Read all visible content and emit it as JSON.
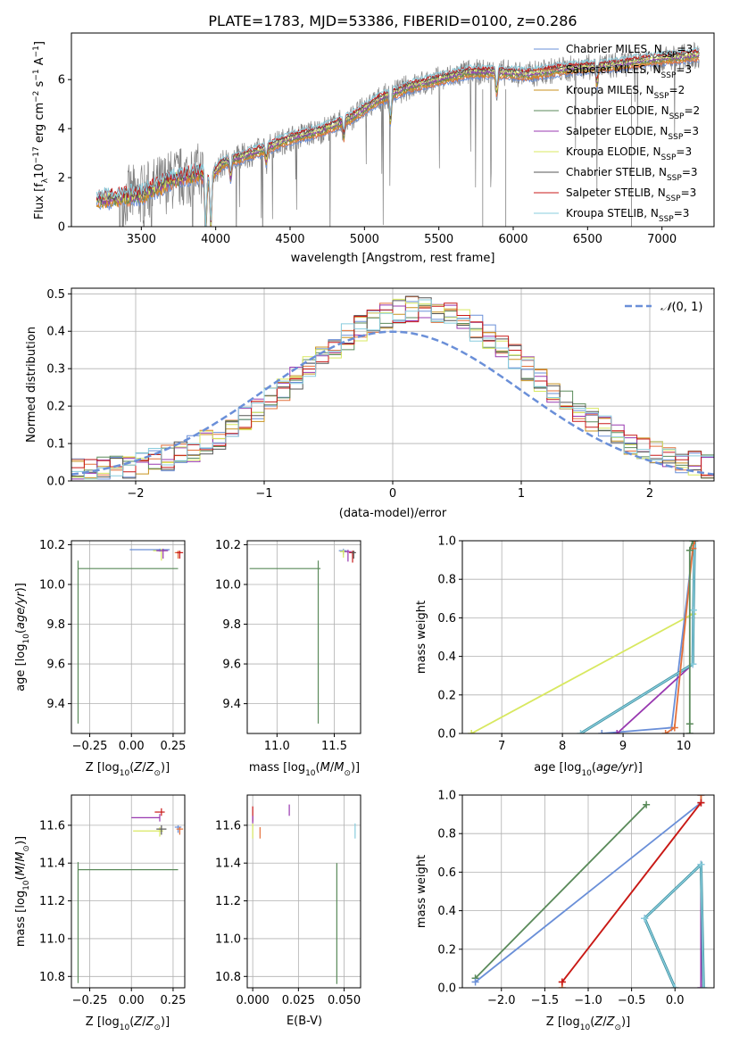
{
  "figure_title": "PLATE=1783, MJD=53386, FIBERID=0100, z=0.286",
  "series": [
    {
      "name": "Chabrier MILES, N_SSP=3",
      "base": "Chabrier MILES, N",
      "sub": "SSP",
      "suffix": "=3",
      "color": "#6a8fd8"
    },
    {
      "name": "Salpeter MILES, N_SSP=3",
      "base": "Salpeter MILES, N",
      "sub": "SSP",
      "suffix": "=3",
      "color": "#e4703a"
    },
    {
      "name": "Kroupa MILES, N_SSP=2",
      "base": "Kroupa MILES, N",
      "sub": "SSP",
      "suffix": "=2",
      "color": "#c8921e"
    },
    {
      "name": "Chabrier ELODIE, N_SSP=2",
      "base": "Chabrier ELODIE, N",
      "sub": "SSP",
      "suffix": "=2",
      "color": "#5a8a5a"
    },
    {
      "name": "Salpeter ELODIE, N_SSP=3",
      "base": "Salpeter ELODIE, N",
      "sub": "SSP",
      "suffix": "=3",
      "color": "#9838b0"
    },
    {
      "name": "Kroupa ELODIE, N_SSP=3",
      "base": "Kroupa ELODIE, N",
      "sub": "SSP",
      "suffix": "=3",
      "color": "#d8e860"
    },
    {
      "name": "Chabrier STELIB, N_SSP=3",
      "base": "Chabrier STELIB, N",
      "sub": "SSP",
      "suffix": "=3",
      "color": "#555555"
    },
    {
      "name": "Salpeter STELIB, N_SSP=3",
      "base": "Salpeter STELIB, N",
      "sub": "SSP",
      "suffix": "=3",
      "color": "#c81818"
    },
    {
      "name": "Kroupa STELIB, N_SSP=3",
      "base": "Kroupa STELIB, N",
      "sub": "SSP",
      "suffix": "=3",
      "color": "#88ccdd"
    }
  ],
  "chart_data": [
    {
      "id": "spectrum",
      "type": "line",
      "xlabel": "wavelength [Angstrom, rest frame]",
      "ylabel": "Flux [f_λ 10^-17 erg cm^-2 s^-1 A^-1]",
      "xlim": [
        3030,
        7350
      ],
      "ylim": [
        0,
        7.9
      ],
      "xticks": [
        3500,
        4000,
        4500,
        5000,
        5500,
        6000,
        6500,
        7000
      ],
      "yticks": [
        0,
        2,
        4,
        6
      ],
      "grid": false,
      "legend": "upper-right",
      "data_color": "#808080",
      "continuum": {
        "x": [
          3200,
          3500,
          3700,
          3900,
          3950,
          4050,
          4300,
          4500,
          4700,
          4900,
          5100,
          5300,
          5500,
          5700,
          5900,
          6100,
          6300,
          6500,
          6700,
          6900,
          7100,
          7250
        ],
        "y": [
          1.1,
          1.3,
          1.9,
          2.2,
          1.9,
          2.6,
          3.1,
          3.6,
          3.9,
          4.4,
          5.2,
          5.7,
          6.0,
          6.3,
          6.3,
          6.2,
          6.4,
          6.5,
          6.6,
          6.8,
          6.9,
          7.0
        ]
      },
      "absorption": [
        [
          3933,
          2.5
        ],
        [
          3968,
          2.2
        ],
        [
          4101,
          0.8
        ],
        [
          4340,
          0.6
        ],
        [
          4861,
          0.7
        ],
        [
          5175,
          1.2
        ],
        [
          5890,
          0.9
        ],
        [
          6563,
          0.8
        ]
      ]
    },
    {
      "id": "residuals",
      "type": "step",
      "xlabel": "(data-model)/error",
      "ylabel": "Normed distribution",
      "xlim": [
        -2.5,
        2.5
      ],
      "ylim": [
        0,
        0.515
      ],
      "xticks": [
        -2,
        -1,
        0,
        1,
        2
      ],
      "yticks": [
        0.0,
        0.1,
        0.2,
        0.3,
        0.4,
        0.5
      ],
      "grid": true,
      "legend": "upper-right",
      "gaussian_label": "N(0,1)",
      "gaussian_color": "#6a8fd8",
      "bin_width": 0.1,
      "envelope": {
        "mu": 0.2,
        "sigma": 0.9,
        "amp": 0.44
      }
    },
    {
      "id": "age-vs-Z",
      "type": "scatter",
      "xlabel": "Z [log10(Z/Z_sun)]",
      "ylabel": "age [log10(age/yr)]",
      "xlim": [
        -0.36,
        0.32
      ],
      "ylim": [
        9.25,
        10.22
      ],
      "xticks": [
        -0.25,
        0.0,
        0.25
      ],
      "yticks": [
        9.4,
        9.6,
        9.8,
        10.0,
        10.2
      ],
      "grid": true,
      "points": [
        {
          "s": 3,
          "x": -0.32,
          "y": 10.08,
          "xerr": [
            0.0,
            0.6
          ],
          "yerr": [
            0.78,
            0.04
          ]
        },
        {
          "s": 0,
          "x": 0.17,
          "y": 10.175,
          "xerr": [
            0.18,
            0.06
          ],
          "yerr": [
            0.01,
            0.005
          ]
        },
        {
          "s": 5,
          "x": 0.18,
          "y": 10.17,
          "xerr": [
            0.05,
            0.03
          ],
          "yerr": [
            0.05,
            0.01
          ]
        },
        {
          "s": 4,
          "x": 0.19,
          "y": 10.17,
          "xerr": [
            0.04,
            0.03
          ],
          "yerr": [
            0.04,
            0.01
          ]
        },
        {
          "s": 1,
          "x": 0.28,
          "y": 10.16,
          "xerr": [
            0.02,
            0.02
          ],
          "yerr": [
            0.03,
            0.01
          ]
        },
        {
          "s": 7,
          "x": 0.29,
          "y": 10.16,
          "xerr": [
            0.02,
            0.02
          ],
          "yerr": [
            0.03,
            0.01
          ]
        }
      ]
    },
    {
      "id": "age-vs-mass",
      "type": "scatter",
      "xlabel": "mass [log10(M/M_sun)]",
      "ylabel": "",
      "xlim": [
        10.74,
        11.73
      ],
      "ylim": [
        9.25,
        10.22
      ],
      "xticks": [
        11.0,
        11.5
      ],
      "yticks": [
        9.4,
        9.6,
        9.8,
        10.0,
        10.2
      ],
      "grid": true,
      "points": [
        {
          "s": 3,
          "x": 11.36,
          "y": 10.08,
          "xerr": [
            0.6,
            0.02
          ],
          "yerr": [
            0.78,
            0.04
          ]
        },
        {
          "s": 0,
          "x": 11.58,
          "y": 10.17,
          "xerr": [
            0.04,
            0.03
          ],
          "yerr": [
            0.02,
            0.01
          ]
        },
        {
          "s": 5,
          "x": 11.58,
          "y": 10.165,
          "xerr": [
            0.03,
            0.03
          ],
          "yerr": [
            0.03,
            0.01
          ]
        },
        {
          "s": 4,
          "x": 11.62,
          "y": 10.165,
          "xerr": [
            0.03,
            0.03
          ],
          "yerr": [
            0.05,
            0.01
          ]
        },
        {
          "s": 7,
          "x": 11.66,
          "y": 10.16,
          "xerr": [
            0.03,
            0.02
          ],
          "yerr": [
            0.05,
            0.01
          ]
        },
        {
          "s": 6,
          "x": 11.67,
          "y": 10.16,
          "xerr": [
            0.02,
            0.02
          ],
          "yerr": [
            0.03,
            0.01
          ]
        }
      ]
    },
    {
      "id": "weight-vs-age",
      "type": "line",
      "xlabel": "age [log10(age/yr)]",
      "ylabel": "mass weight",
      "xlim": [
        6.35,
        10.5
      ],
      "ylim": [
        0,
        1.0
      ],
      "xticks": [
        7,
        8,
        9,
        10
      ],
      "yticks": [
        0.0,
        0.2,
        0.4,
        0.6,
        0.8,
        1.0
      ],
      "grid": true,
      "cumulative": [
        {
          "s": 5,
          "pts": [
            [
              6.5,
              0.0
            ],
            [
              10.15,
              0.62
            ],
            [
              10.18,
              1.0
            ]
          ]
        },
        {
          "s": 0,
          "pts": [
            [
              8.65,
              0.0
            ],
            [
              9.8,
              0.03
            ],
            [
              10.15,
              0.96
            ],
            [
              10.18,
              1.0
            ]
          ]
        },
        {
          "s": 4,
          "pts": [
            [
              8.9,
              0.0
            ],
            [
              10.15,
              0.36
            ],
            [
              10.18,
              1.0
            ]
          ]
        },
        {
          "s": 8,
          "pts": [
            [
              8.3,
              0.0
            ],
            [
              10.15,
              0.36
            ],
            [
              10.16,
              0.64
            ],
            [
              10.18,
              1.0
            ]
          ]
        },
        {
          "s": 1,
          "pts": [
            [
              9.7,
              0.0
            ],
            [
              9.85,
              0.03
            ],
            [
              10.15,
              0.96
            ],
            [
              10.18,
              1.0
            ]
          ]
        },
        {
          "s": 3,
          "pts": [
            [
              10.1,
              0.0
            ],
            [
              10.1,
              0.05
            ],
            [
              10.1,
              0.95
            ],
            [
              10.15,
              1.0
            ]
          ]
        }
      ]
    },
    {
      "id": "mass-vs-Z",
      "type": "scatter",
      "xlabel": "Z [log10(Z/Z_sun)]",
      "ylabel": "mass [log10(M/M_sun)]",
      "xlim": [
        -0.36,
        0.32
      ],
      "ylim": [
        10.74,
        11.76
      ],
      "xticks": [
        -0.25,
        0.0,
        0.25
      ],
      "yticks": [
        10.8,
        11.0,
        11.2,
        11.4,
        11.6
      ],
      "grid": true,
      "points": [
        {
          "s": 3,
          "x": -0.32,
          "y": 11.365,
          "xerr": [
            0.0,
            0.6
          ],
          "yerr": [
            0.6,
            0.04
          ]
        },
        {
          "s": 4,
          "x": 0.17,
          "y": 11.64,
          "xerr": [
            0.17,
            0.0
          ],
          "yerr": [
            0.02,
            0.02
          ]
        },
        {
          "s": 7,
          "x": 0.18,
          "y": 11.67,
          "xerr": [
            0.04,
            0.02
          ],
          "yerr": [
            0.02,
            0.02
          ]
        },
        {
          "s": 5,
          "x": 0.17,
          "y": 11.57,
          "xerr": [
            0.16,
            0.02
          ],
          "yerr": [
            0.03,
            0.02
          ]
        },
        {
          "s": 6,
          "x": 0.18,
          "y": 11.58,
          "xerr": [
            0.03,
            0.03
          ],
          "yerr": [
            0.03,
            0.02
          ]
        },
        {
          "s": 0,
          "x": 0.28,
          "y": 11.59,
          "xerr": [
            0.02,
            0.02
          ],
          "yerr": [
            0.03,
            0.01
          ]
        },
        {
          "s": 1,
          "x": 0.29,
          "y": 11.58,
          "xerr": [
            0.02,
            0.02
          ],
          "yerr": [
            0.03,
            0.01
          ]
        }
      ]
    },
    {
      "id": "mass-vs-EBV",
      "type": "scatter",
      "xlabel": "E(B-V)",
      "ylabel": "",
      "xlim": [
        -0.003,
        0.059
      ],
      "ylim": [
        10.74,
        11.76
      ],
      "xticks": [
        0.0,
        0.025,
        0.05
      ],
      "yticks": [
        10.8,
        11.0,
        11.2,
        11.4,
        11.6
      ],
      "grid": true,
      "points": [
        {
          "s": 3,
          "x": 0.046,
          "y": 11.36,
          "xerr": [
            0,
            0
          ],
          "yerr": [
            0.6,
            0.04
          ]
        },
        {
          "s": 7,
          "x": 0.0,
          "y": 11.66,
          "xerr": [
            0,
            0
          ],
          "yerr": [
            0.04,
            0.04
          ]
        },
        {
          "s": 5,
          "x": 0.0,
          "y": 11.57,
          "xerr": [
            0,
            0
          ],
          "yerr": [
            0.04,
            0.04
          ]
        },
        {
          "s": 4,
          "x": 0.0,
          "y": 11.63,
          "xerr": [
            0,
            0
          ],
          "yerr": [
            0.02,
            0.02
          ]
        },
        {
          "s": 1,
          "x": 0.004,
          "y": 11.56,
          "xerr": [
            0,
            0
          ],
          "yerr": [
            0.03,
            0.03
          ]
        },
        {
          "s": 4,
          "x": 0.02,
          "y": 11.68,
          "xerr": [
            0,
            0
          ],
          "yerr": [
            0.03,
            0.03
          ]
        },
        {
          "s": 8,
          "x": 0.056,
          "y": 11.57,
          "xerr": [
            0,
            0
          ],
          "yerr": [
            0.04,
            0.04
          ]
        }
      ]
    },
    {
      "id": "weight-vs-Z",
      "type": "line",
      "xlabel": "Z [log10(Z/Z_sun)]",
      "ylabel": "mass weight",
      "xlim": [
        -2.45,
        0.45
      ],
      "ylim": [
        0,
        1.0
      ],
      "xticks": [
        -2.0,
        -1.5,
        -1.0,
        -0.5,
        0.0
      ],
      "yticks": [
        0.0,
        0.2,
        0.4,
        0.6,
        0.8,
        1.0
      ],
      "grid": true,
      "cumulative": [
        {
          "s": 3,
          "pts": [
            [
              -2.3,
              0.05
            ],
            [
              -0.33,
              0.95
            ]
          ]
        },
        {
          "s": 0,
          "pts": [
            [
              -2.3,
              0.03
            ],
            [
              0.3,
              0.96
            ],
            [
              0.3,
              1.0
            ]
          ]
        },
        {
          "s": 1,
          "pts": [
            [
              -1.3,
              0.0
            ],
            [
              -1.3,
              0.03
            ],
            [
              0.3,
              0.96
            ],
            [
              0.3,
              1.0
            ]
          ]
        },
        {
          "s": 7,
          "pts": [
            [
              -1.3,
              0.03
            ],
            [
              0.3,
              0.96
            ]
          ]
        },
        {
          "s": 4,
          "pts": [
            [
              -0.35,
              0.36
            ],
            [
              0.3,
              0.64
            ],
            [
              0.3,
              0.0
            ]
          ]
        },
        {
          "s": 8,
          "pts": [
            [
              0.0,
              0.0
            ],
            [
              -0.35,
              0.36
            ],
            [
              0.3,
              0.64
            ],
            [
              0.33,
              0.0
            ]
          ]
        }
      ]
    }
  ]
}
